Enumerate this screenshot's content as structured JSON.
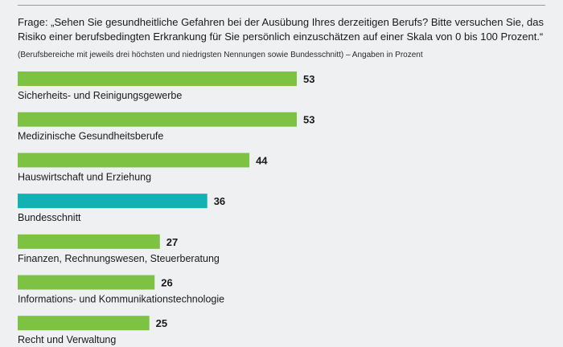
{
  "header": {
    "question": "Frage: „Sehen Sie gesundheitliche Gefahren bei der Ausübung Ihres derzeitigen Berufs? Bitte versuchen Sie, das Risiko einer berufsbedingten Erkrankung für Sie persönlich einzuschätzen auf einer Skala von 0 bis 100 Prozent.“",
    "note": "(Berufsbereiche mit jeweils drei höchsten und niedrigsten Nennungen sowie Bundesschnitt) – Angaben in Prozent"
  },
  "colors": {
    "bar": "#7dc242",
    "highlight": "#13b1b4",
    "background": "#eef0f2"
  },
  "chart_data": {
    "type": "bar",
    "orientation": "horizontal",
    "title": "",
    "unit": "Prozent",
    "xlim": [
      0,
      100
    ],
    "grid": false,
    "categories": [
      "Sicherheits- und Reinigungsgewerbe",
      "Medizinische Gesundheitsberufe",
      "Hauswirtschaft und Erziehung",
      "Bundesschnitt",
      "Finanzen, Rechnungswesen, Steuerberatung",
      "Informations- und Kommunikationstechnologie",
      "Recht und Verwaltung"
    ],
    "values": [
      53,
      53,
      44,
      36,
      27,
      26,
      25
    ],
    "highlight_category": "Bundesschnitt"
  }
}
